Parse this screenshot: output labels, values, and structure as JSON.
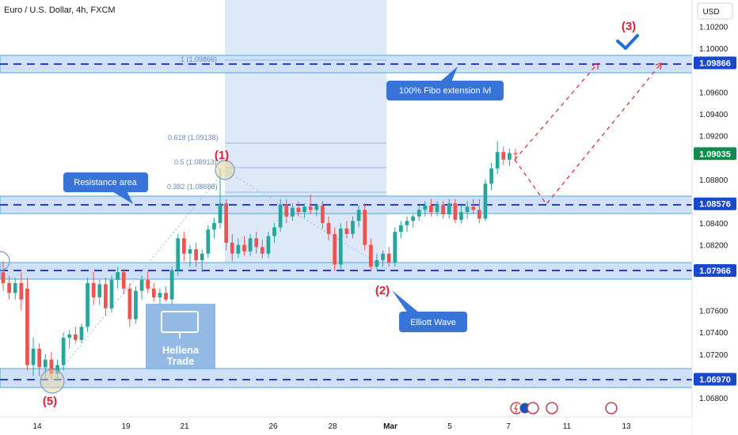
{
  "header": {
    "title": "Euro / U.S. Dollar, 4h, FXCM"
  },
  "price_axis": {
    "currency": "USD",
    "ticks": [
      "1.10200",
      "1.10000",
      "1.09600",
      "1.09400",
      "1.09200",
      "1.08800",
      "1.08400",
      "1.08200",
      "1.07600",
      "1.07400",
      "1.07200",
      "1.06800"
    ],
    "badges": [
      {
        "label": "1.09866",
        "color": "#1848cc"
      },
      {
        "label": "1.09035",
        "color": "#118a4f"
      },
      {
        "label": "1.08576",
        "color": "#1848cc"
      },
      {
        "label": "1.07966",
        "color": "#1848cc"
      },
      {
        "label": "1.06970",
        "color": "#1848cc"
      }
    ]
  },
  "time_axis": {
    "ticks": [
      "14",
      "19",
      "21",
      "26",
      "28",
      "Mar",
      "5",
      "7",
      "11",
      "13"
    ]
  },
  "fibo": [
    {
      "label": "1 (1.09866)"
    },
    {
      "label": "0.618 (1.09138)"
    },
    {
      "label": "0.5 (1.08913)"
    },
    {
      "label": "0.382 (1.08688)"
    }
  ],
  "annotations": {
    "fibo_ext": "100% Fibo extension lvl",
    "resistance": "Resistance area",
    "elliott": "Elliott Wave",
    "wave1": "(1)",
    "wave2": "(2)",
    "wave3": "(3)",
    "wave5": "(5)"
  },
  "watermark": {
    "line1": "Hellena",
    "line2": "Trade"
  },
  "chart_data": {
    "type": "candlestick",
    "symbol": "EUR/USD",
    "timeframe": "4h",
    "ylim": [
      1.0675,
      1.1025
    ],
    "horizontal_levels": [
      1.09866,
      1.08576,
      1.07966,
      1.0697
    ],
    "last_price": 1.09035,
    "colors": {
      "up": "#26a69a",
      "down": "#ef5350",
      "level": "#1848cc",
      "zone": "#c5d9f5"
    },
    "candles": [
      {
        "o": 1.0795,
        "h": 1.0805,
        "l": 1.0778,
        "c": 1.0785
      },
      {
        "o": 1.0785,
        "h": 1.0792,
        "l": 1.077,
        "c": 1.0776
      },
      {
        "o": 1.0776,
        "h": 1.079,
        "l": 1.077,
        "c": 1.0785
      },
      {
        "o": 1.0785,
        "h": 1.0795,
        "l": 1.076,
        "c": 1.077
      },
      {
        "o": 1.078,
        "h": 1.079,
        "l": 1.0705,
        "c": 1.071
      },
      {
        "o": 1.071,
        "h": 1.0735,
        "l": 1.07,
        "c": 1.0725
      },
      {
        "o": 1.0725,
        "h": 1.073,
        "l": 1.07,
        "c": 1.0708
      },
      {
        "o": 1.0708,
        "h": 1.072,
        "l": 1.0697,
        "c": 1.0715
      },
      {
        "o": 1.0715,
        "h": 1.0722,
        "l": 1.0697,
        "c": 1.0702
      },
      {
        "o": 1.0702,
        "h": 1.0715,
        "l": 1.0695,
        "c": 1.071
      },
      {
        "o": 1.071,
        "h": 1.074,
        "l": 1.0705,
        "c": 1.0735
      },
      {
        "o": 1.0735,
        "h": 1.0742,
        "l": 1.0725,
        "c": 1.0738
      },
      {
        "o": 1.0738,
        "h": 1.0745,
        "l": 1.073,
        "c": 1.0733
      },
      {
        "o": 1.0733,
        "h": 1.0748,
        "l": 1.073,
        "c": 1.0745
      },
      {
        "o": 1.0745,
        "h": 1.079,
        "l": 1.074,
        "c": 1.0785
      },
      {
        "o": 1.0785,
        "h": 1.0795,
        "l": 1.0765,
        "c": 1.0772
      },
      {
        "o": 1.0772,
        "h": 1.0788,
        "l": 1.0765,
        "c": 1.0784
      },
      {
        "o": 1.0784,
        "h": 1.079,
        "l": 1.0755,
        "c": 1.0762
      },
      {
        "o": 1.0762,
        "h": 1.0792,
        "l": 1.0758,
        "c": 1.0788
      },
      {
        "o": 1.0788,
        "h": 1.08,
        "l": 1.078,
        "c": 1.0795
      },
      {
        "o": 1.0795,
        "h": 1.0798,
        "l": 1.0775,
        "c": 1.078
      },
      {
        "o": 1.078,
        "h": 1.0785,
        "l": 1.0745,
        "c": 1.0752
      },
      {
        "o": 1.0752,
        "h": 1.0782,
        "l": 1.0748,
        "c": 1.0778
      },
      {
        "o": 1.0778,
        "h": 1.0792,
        "l": 1.077,
        "c": 1.0788
      },
      {
        "o": 1.0788,
        "h": 1.0796,
        "l": 1.0776,
        "c": 1.078
      },
      {
        "o": 1.078,
        "h": 1.0785,
        "l": 1.0768,
        "c": 1.0772
      },
      {
        "o": 1.0772,
        "h": 1.078,
        "l": 1.0765,
        "c": 1.0776
      },
      {
        "o": 1.0776,
        "h": 1.0782,
        "l": 1.0768,
        "c": 1.077
      },
      {
        "o": 1.077,
        "h": 1.08,
        "l": 1.0765,
        "c": 1.0797
      },
      {
        "o": 1.0797,
        "h": 1.083,
        "l": 1.0792,
        "c": 1.0826
      },
      {
        "o": 1.0826,
        "h": 1.0832,
        "l": 1.0805,
        "c": 1.0812
      },
      {
        "o": 1.0812,
        "h": 1.082,
        "l": 1.08,
        "c": 1.0816
      },
      {
        "o": 1.0816,
        "h": 1.0822,
        "l": 1.08,
        "c": 1.0806
      },
      {
        "o": 1.0806,
        "h": 1.0816,
        "l": 1.0795,
        "c": 1.0812
      },
      {
        "o": 1.0812,
        "h": 1.0838,
        "l": 1.0808,
        "c": 1.0834
      },
      {
        "o": 1.0834,
        "h": 1.0845,
        "l": 1.0826,
        "c": 1.084
      },
      {
        "o": 1.084,
        "h": 1.089,
        "l": 1.0835,
        "c": 1.0858
      },
      {
        "o": 1.0858,
        "h": 1.0862,
        "l": 1.0815,
        "c": 1.0822
      },
      {
        "o": 1.0822,
        "h": 1.083,
        "l": 1.0805,
        "c": 1.0812
      },
      {
        "o": 1.0812,
        "h": 1.0826,
        "l": 1.0808,
        "c": 1.082
      },
      {
        "o": 1.082,
        "h": 1.0828,
        "l": 1.081,
        "c": 1.0814
      },
      {
        "o": 1.0814,
        "h": 1.083,
        "l": 1.081,
        "c": 1.0826
      },
      {
        "o": 1.0826,
        "h": 1.0832,
        "l": 1.0812,
        "c": 1.0818
      },
      {
        "o": 1.0818,
        "h": 1.0825,
        "l": 1.0808,
        "c": 1.0812
      },
      {
        "o": 1.0812,
        "h": 1.0832,
        "l": 1.0808,
        "c": 1.0828
      },
      {
        "o": 1.0828,
        "h": 1.084,
        "l": 1.0822,
        "c": 1.0836
      },
      {
        "o": 1.0836,
        "h": 1.0862,
        "l": 1.0832,
        "c": 1.0857
      },
      {
        "o": 1.0857,
        "h": 1.0862,
        "l": 1.084,
        "c": 1.0846
      },
      {
        "o": 1.0846,
        "h": 1.0858,
        "l": 1.0842,
        "c": 1.0854
      },
      {
        "o": 1.0854,
        "h": 1.086,
        "l": 1.0846,
        "c": 1.085
      },
      {
        "o": 1.085,
        "h": 1.0858,
        "l": 1.0845,
        "c": 1.0855
      },
      {
        "o": 1.0855,
        "h": 1.0866,
        "l": 1.0848,
        "c": 1.0852
      },
      {
        "o": 1.0852,
        "h": 1.0858,
        "l": 1.0846,
        "c": 1.0856
      },
      {
        "o": 1.0856,
        "h": 1.086,
        "l": 1.0835,
        "c": 1.084
      },
      {
        "o": 1.084,
        "h": 1.0846,
        "l": 1.0824,
        "c": 1.083
      },
      {
        "o": 1.083,
        "h": 1.0836,
        "l": 1.0796,
        "c": 1.0802
      },
      {
        "o": 1.0802,
        "h": 1.084,
        "l": 1.0798,
        "c": 1.0835
      },
      {
        "o": 1.0835,
        "h": 1.0842,
        "l": 1.0826,
        "c": 1.083
      },
      {
        "o": 1.083,
        "h": 1.0846,
        "l": 1.0826,
        "c": 1.0842
      },
      {
        "o": 1.0842,
        "h": 1.0856,
        "l": 1.0836,
        "c": 1.0852
      },
      {
        "o": 1.0852,
        "h": 1.0858,
        "l": 1.0815,
        "c": 1.082
      },
      {
        "o": 1.082,
        "h": 1.0826,
        "l": 1.0796,
        "c": 1.08
      },
      {
        "o": 1.08,
        "h": 1.0812,
        "l": 1.0797,
        "c": 1.0806
      },
      {
        "o": 1.0806,
        "h": 1.0815,
        "l": 1.08,
        "c": 1.0812
      },
      {
        "o": 1.0812,
        "h": 1.0818,
        "l": 1.08,
        "c": 1.0804
      },
      {
        "o": 1.0804,
        "h": 1.0836,
        "l": 1.08,
        "c": 1.0832
      },
      {
        "o": 1.0832,
        "h": 1.0842,
        "l": 1.0826,
        "c": 1.0838
      },
      {
        "o": 1.0838,
        "h": 1.0846,
        "l": 1.0832,
        "c": 1.0842
      },
      {
        "o": 1.0842,
        "h": 1.0848,
        "l": 1.0836,
        "c": 1.0846
      },
      {
        "o": 1.0846,
        "h": 1.0856,
        "l": 1.0842,
        "c": 1.0852
      },
      {
        "o": 1.0852,
        "h": 1.086,
        "l": 1.0846,
        "c": 1.0856
      },
      {
        "o": 1.0856,
        "h": 1.0862,
        "l": 1.0846,
        "c": 1.085
      },
      {
        "o": 1.085,
        "h": 1.086,
        "l": 1.0846,
        "c": 1.0857
      },
      {
        "o": 1.0857,
        "h": 1.086,
        "l": 1.0844,
        "c": 1.0848
      },
      {
        "o": 1.0848,
        "h": 1.0862,
        "l": 1.0844,
        "c": 1.0858
      },
      {
        "o": 1.0858,
        "h": 1.0862,
        "l": 1.084,
        "c": 1.0843
      },
      {
        "o": 1.0843,
        "h": 1.0856,
        "l": 1.084,
        "c": 1.085
      },
      {
        "o": 1.085,
        "h": 1.086,
        "l": 1.0844,
        "c": 1.0855
      },
      {
        "o": 1.0855,
        "h": 1.0862,
        "l": 1.0848,
        "c": 1.0852
      },
      {
        "o": 1.0852,
        "h": 1.0862,
        "l": 1.084,
        "c": 1.0844
      },
      {
        "o": 1.0844,
        "h": 1.088,
        "l": 1.0842,
        "c": 1.0876
      },
      {
        "o": 1.0876,
        "h": 1.0895,
        "l": 1.087,
        "c": 1.089
      },
      {
        "o": 1.089,
        "h": 1.0915,
        "l": 1.0885,
        "c": 1.0905
      },
      {
        "o": 1.0905,
        "h": 1.091,
        "l": 1.0893,
        "c": 1.0898
      },
      {
        "o": 1.0898,
        "h": 1.0908,
        "l": 1.0892,
        "c": 1.0904
      },
      {
        "o": 1.0904,
        "h": 1.0908,
        "l": 1.0896,
        "c": 1.0903
      }
    ]
  }
}
